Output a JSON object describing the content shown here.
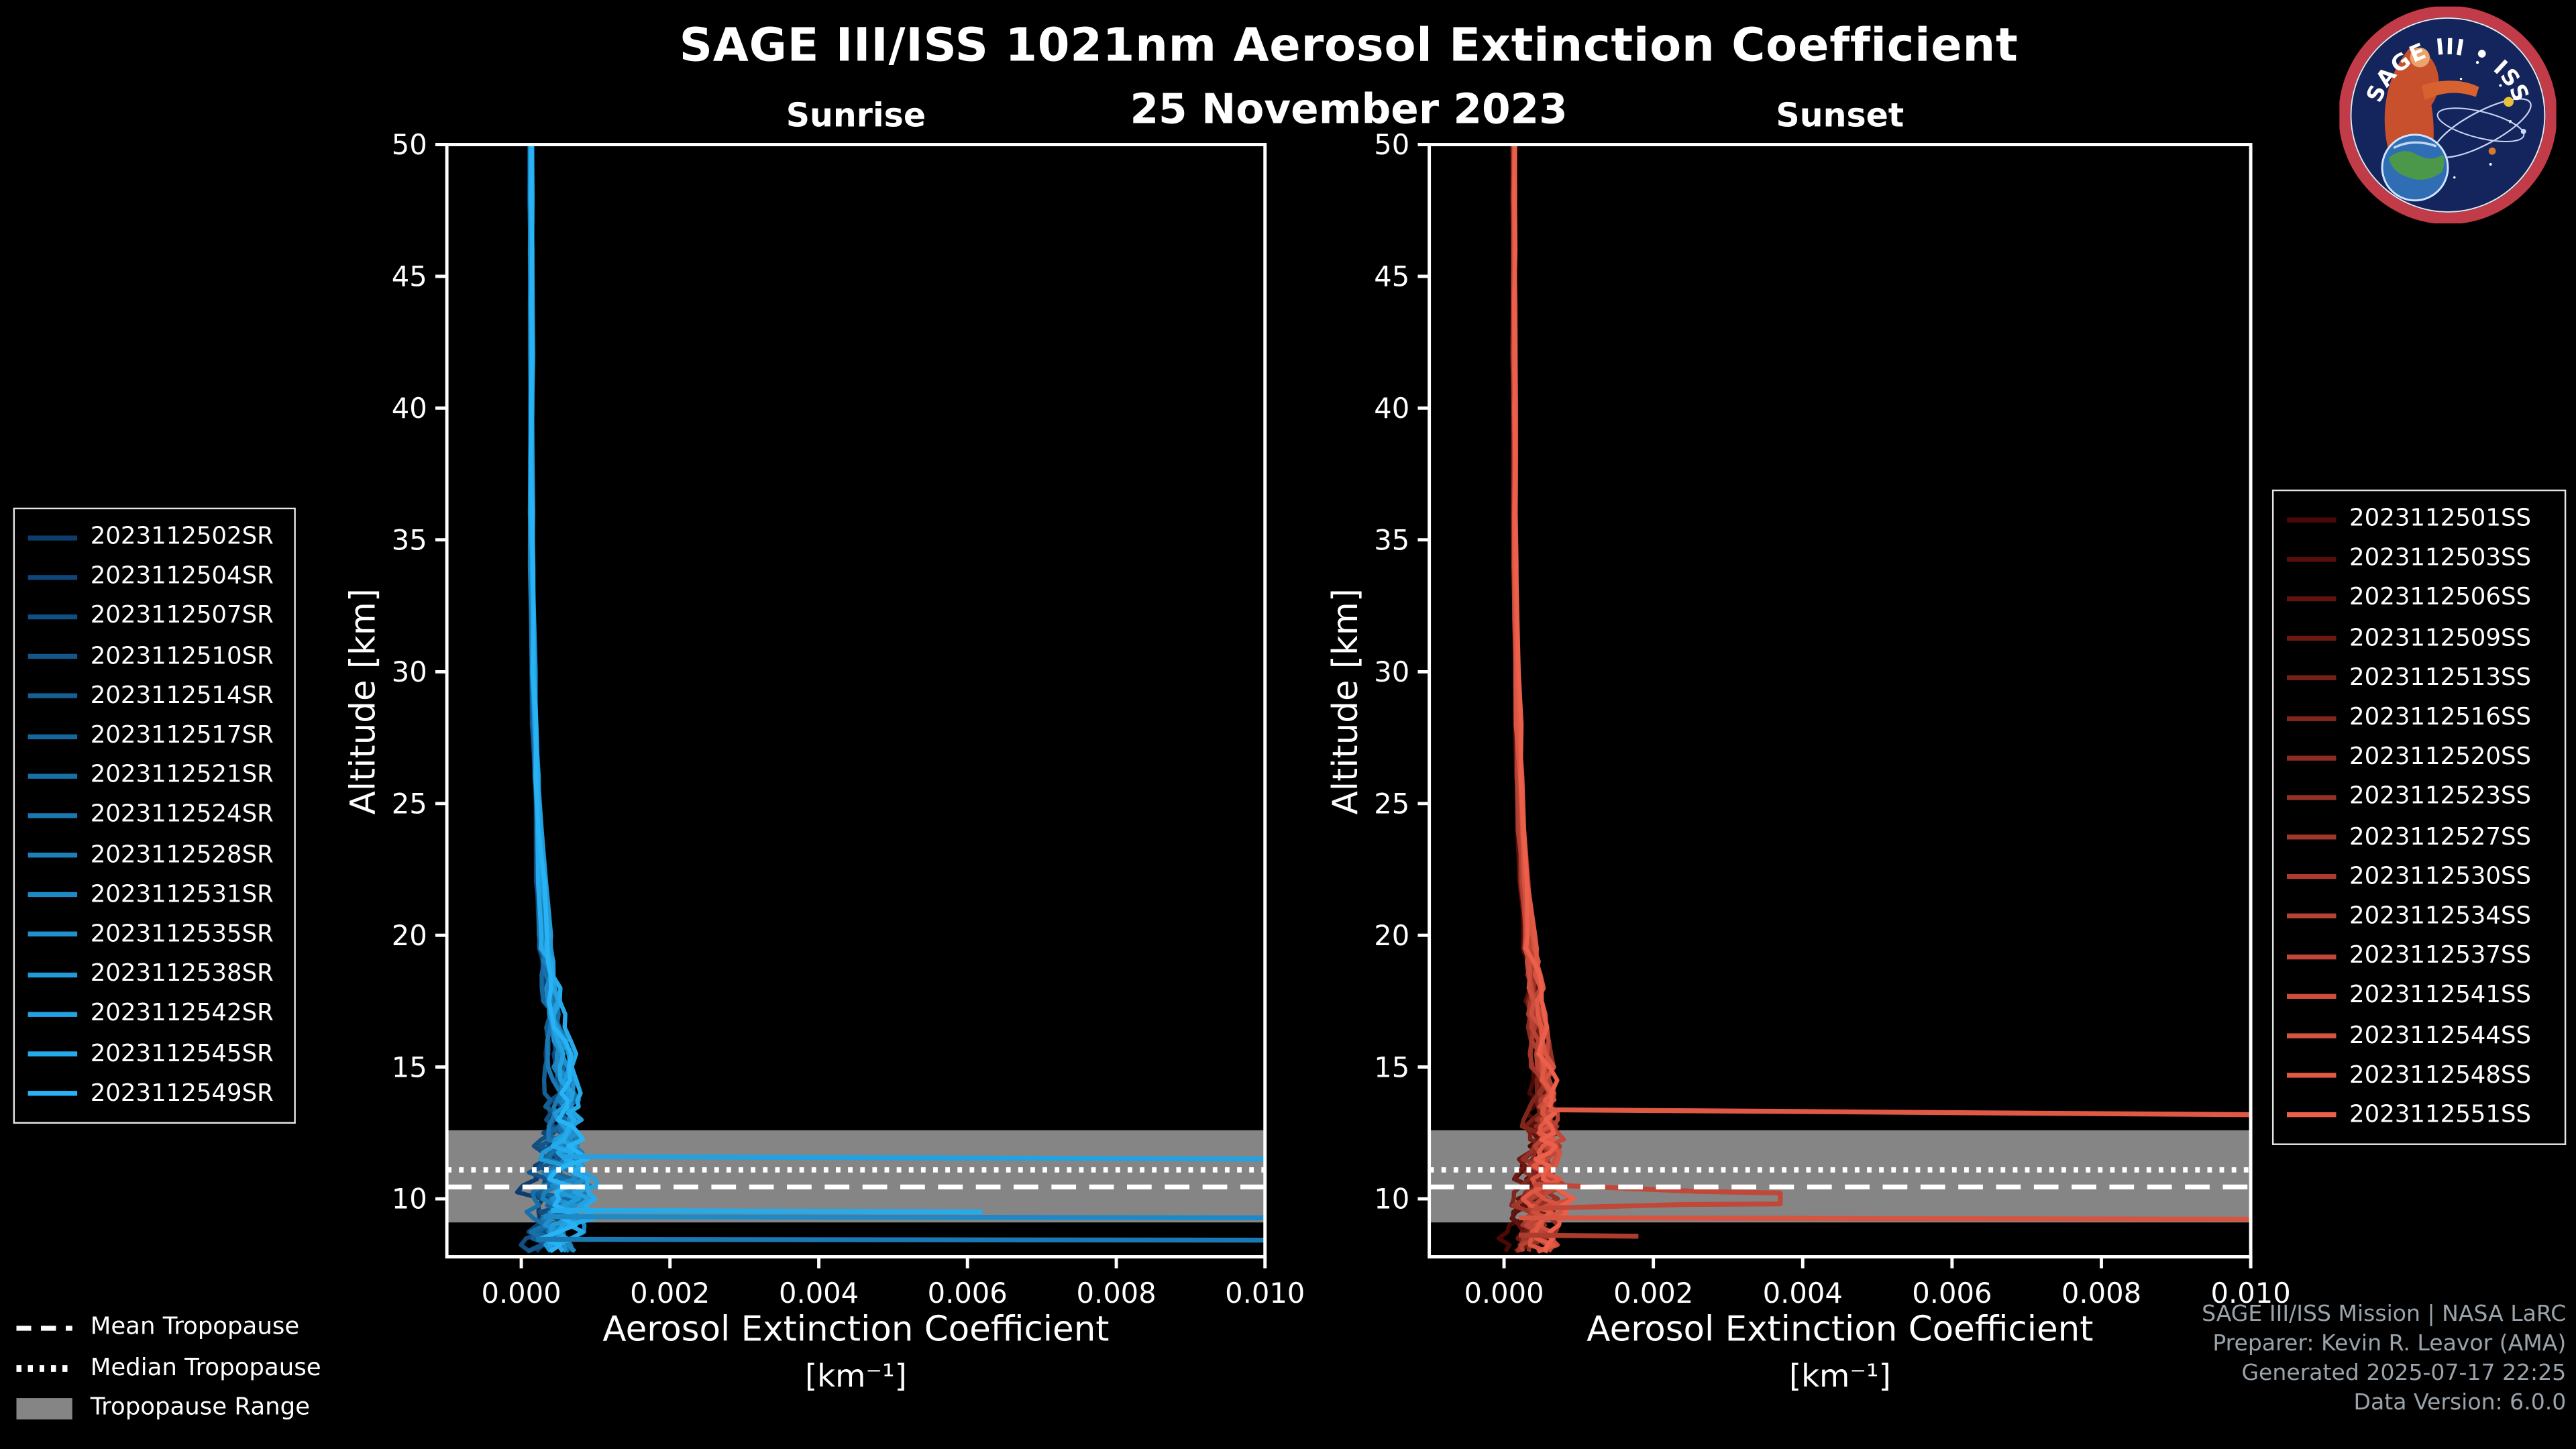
{
  "header": {
    "title": "SAGE III/ISS 1021nm Aerosol Extinction Coefficient",
    "subtitle": "25 November 2023"
  },
  "chart_data": [
    {
      "type": "line",
      "title": "Sunrise",
      "xlabel": "Aerosol Extinction Coefficient",
      "xlabel_units": "[km⁻¹]",
      "ylabel": "Altitude [km]",
      "xlim": [
        -0.001,
        0.01
      ],
      "ylim": [
        7.8,
        50
      ],
      "xticks": [
        0,
        0.002,
        0.004,
        0.006,
        0.008,
        0.01
      ],
      "xtick_labels": [
        "0.000",
        "0.002",
        "0.004",
        "0.006",
        "0.008",
        "0.010"
      ],
      "yticks": [
        10,
        15,
        20,
        25,
        30,
        35,
        40,
        45,
        50
      ],
      "ytick_labels": [
        "10",
        "15",
        "20",
        "25",
        "30",
        "35",
        "40",
        "45",
        "50"
      ],
      "legend_side": "left",
      "grid": false,
      "color_ramp": [
        "#0d3d6e",
        "#27b3f5"
      ],
      "seed": 7,
      "series": [
        "2023112502SR",
        "2023112504SR",
        "2023112507SR",
        "2023112510SR",
        "2023112514SR",
        "2023112517SR",
        "2023112521SR",
        "2023112524SR",
        "2023112528SR",
        "2023112531SR",
        "2023112535SR",
        "2023112538SR",
        "2023112542SR",
        "2023112545SR",
        "2023112549SR"
      ],
      "profile_nodes": [
        [
          50,
          0.00013,
          2e-05
        ],
        [
          35,
          0.00014,
          2.5e-05
        ],
        [
          30,
          0.00016,
          3e-05
        ],
        [
          25,
          0.00021,
          5e-05
        ],
        [
          22,
          0.00026,
          7e-05
        ],
        [
          20,
          0.00031,
          0.0001
        ],
        [
          18,
          0.0004,
          0.00014
        ],
        [
          16,
          0.0005,
          0.00017
        ],
        [
          14,
          0.00058,
          0.00021
        ],
        [
          13,
          0.00056,
          0.00026
        ],
        [
          12,
          0.00052,
          0.00032
        ],
        [
          11,
          0.00048,
          0.0004
        ],
        [
          10,
          0.00053,
          0.00046
        ],
        [
          9,
          0.00045,
          0.00042
        ],
        [
          8,
          0.00038,
          0.00036
        ]
      ],
      "cloud_features": [
        {
          "series_index": 12,
          "kind": "bar",
          "alt0": 11.6,
          "alt1": 11.5,
          "x0": 0.00055,
          "x1": 0.0105
        },
        {
          "series_index": 13,
          "kind": "bar",
          "alt0": 9.56,
          "alt1": 9.5,
          "x0": 0.0004,
          "x1": 0.0062
        },
        {
          "series_index": 9,
          "kind": "bar",
          "alt0": 9.32,
          "alt1": 9.28,
          "x0": 0.0003,
          "x1": 0.0105
        },
        {
          "series_index": 7,
          "kind": "bar",
          "alt0": 8.46,
          "alt1": 8.43,
          "x0": 0.0002,
          "x1": 0.0105
        }
      ],
      "tropopause": {
        "mean_km": 10.45,
        "median_km": 11.1,
        "range_km": [
          9.1,
          12.6
        ]
      }
    },
    {
      "type": "line",
      "title": "Sunset",
      "xlabel": "Aerosol Extinction Coefficient",
      "xlabel_units": "[km⁻¹]",
      "ylabel": "Altitude [km]",
      "xlim": [
        -0.001,
        0.01
      ],
      "ylim": [
        7.8,
        50
      ],
      "xticks": [
        0,
        0.002,
        0.004,
        0.006,
        0.008,
        0.01
      ],
      "xtick_labels": [
        "0.000",
        "0.002",
        "0.004",
        "0.006",
        "0.008",
        "0.010"
      ],
      "yticks": [
        10,
        15,
        20,
        25,
        30,
        35,
        40,
        45,
        50
      ],
      "ytick_labels": [
        "10",
        "15",
        "20",
        "25",
        "30",
        "35",
        "40",
        "45",
        "50"
      ],
      "legend_side": "right",
      "grid": false,
      "color_ramp": [
        "#4b0905",
        "#ec5f4a"
      ],
      "seed": 41,
      "series": [
        "2023112501SS",
        "2023112503SS",
        "2023112506SS",
        "2023112509SS",
        "2023112513SS",
        "2023112516SS",
        "2023112520SS",
        "2023112523SS",
        "2023112527SS",
        "2023112530SS",
        "2023112534SS",
        "2023112537SS",
        "2023112541SS",
        "2023112544SS",
        "2023112548SS",
        "2023112551SS"
      ],
      "profile_nodes": [
        [
          50,
          0.00013,
          2e-05
        ],
        [
          35,
          0.00014,
          2.5e-05
        ],
        [
          30,
          0.00016,
          3e-05
        ],
        [
          25,
          0.00021,
          5e-05
        ],
        [
          22,
          0.00026,
          7e-05
        ],
        [
          20,
          0.00031,
          9e-05
        ],
        [
          18,
          0.00039,
          0.00012
        ],
        [
          16,
          0.00048,
          0.00015
        ],
        [
          14,
          0.00055,
          0.00018
        ],
        [
          13,
          0.00054,
          0.00022
        ],
        [
          12,
          0.0005,
          0.00028
        ],
        [
          11,
          0.00046,
          0.00034
        ],
        [
          10,
          0.0005,
          0.0004
        ],
        [
          9,
          0.00044,
          0.00038
        ],
        [
          8,
          0.00038,
          0.00034
        ]
      ],
      "cloud_features": [
        {
          "series_index": 14,
          "kind": "bar",
          "alt0": 13.38,
          "alt1": 13.18,
          "x0": 0.0006,
          "x1": 0.0105
        },
        {
          "series_index": 11,
          "kind": "loop",
          "alt_top": 10.25,
          "alt_bot": 9.78,
          "x0": 0.0004,
          "x1": 0.0037
        },
        {
          "series_index": 13,
          "kind": "bar",
          "alt0": 9.28,
          "alt1": 9.22,
          "x0": 0.0002,
          "x1": 0.0105
        },
        {
          "series_index": 9,
          "kind": "bar",
          "alt0": 8.62,
          "alt1": 8.58,
          "x0": 0.0002,
          "x1": 0.0018
        }
      ],
      "tropopause": {
        "mean_km": 10.45,
        "median_km": 11.1,
        "range_km": [
          9.1,
          12.6
        ]
      }
    }
  ],
  "tropopause_legend": {
    "mean_label": "Mean Tropopause",
    "median_label": "Median Tropopause",
    "range_label": "Tropopause Range"
  },
  "credits": [
    "SAGE III/ISS Mission | NASA LaRC",
    "Preparer: Kevin R. Leavor (AMA)",
    "Generated 2025-07-17 22:25",
    "Data Version: 6.0.0"
  ],
  "logo": {
    "title": "SAGE III • ISS"
  },
  "colors": {
    "background": "#000000",
    "axis": "#ffffff",
    "tropopause_band": "#858585",
    "credits_text": "#9aa3ab"
  }
}
